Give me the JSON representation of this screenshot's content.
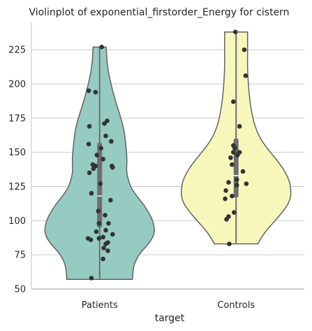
{
  "chart_data": {
    "type": "violin",
    "title": "Violinplot of exponential_firstorder_Energy for cistern",
    "xlabel": "target",
    "ylabel": "",
    "ylim": [
      50,
      245
    ],
    "yticks": [
      50,
      75,
      100,
      125,
      150,
      175,
      200,
      225
    ],
    "grid": "y",
    "categories": [
      "Patients",
      "Controls"
    ],
    "groups": [
      {
        "category": "Patients",
        "fill": "#95cbc1",
        "min": 57,
        "max": 227,
        "q1": 95,
        "median": 118,
        "q3": 157,
        "density": [
          [
            57,
            0.6
          ],
          [
            62,
            0.61
          ],
          [
            67,
            0.63
          ],
          [
            72,
            0.68
          ],
          [
            77,
            0.76
          ],
          [
            82,
            0.87
          ],
          [
            87,
            0.96
          ],
          [
            92,
            1.0
          ],
          [
            97,
            0.99
          ],
          [
            102,
            0.95
          ],
          [
            107,
            0.88
          ],
          [
            112,
            0.8
          ],
          [
            117,
            0.7
          ],
          [
            125,
            0.57
          ],
          [
            135,
            0.5
          ],
          [
            145,
            0.5
          ],
          [
            155,
            0.48
          ],
          [
            165,
            0.45
          ],
          [
            175,
            0.39
          ],
          [
            185,
            0.31
          ],
          [
            195,
            0.24
          ],
          [
            205,
            0.18
          ],
          [
            215,
            0.14
          ],
          [
            220,
            0.13
          ],
          [
            227,
            0.12
          ]
        ],
        "points": [
          [
            0.03,
            227
          ],
          [
            -0.16,
            195
          ],
          [
            -0.06,
            194
          ],
          [
            0.11,
            173
          ],
          [
            0.07,
            171
          ],
          [
            -0.15,
            169
          ],
          [
            0.09,
            162
          ],
          [
            0.17,
            158
          ],
          [
            -0.16,
            156
          ],
          [
            0.02,
            153
          ],
          [
            -0.04,
            148
          ],
          [
            0.05,
            145
          ],
          [
            -0.1,
            141
          ],
          [
            -0.06,
            140
          ],
          [
            0.18,
            140
          ],
          [
            0.19,
            139
          ],
          [
            -0.09,
            138
          ],
          [
            -0.15,
            135
          ],
          [
            0.01,
            127
          ],
          [
            -0.12,
            120
          ],
          [
            0.16,
            115
          ],
          [
            -0.02,
            107
          ],
          [
            0.08,
            104
          ],
          [
            0.13,
            98
          ],
          [
            -0.01,
            98
          ],
          [
            0.09,
            93
          ],
          [
            -0.05,
            92
          ],
          [
            0.19,
            90
          ],
          [
            0.05,
            88
          ],
          [
            -0.17,
            87
          ],
          [
            -0.01,
            87
          ],
          [
            -0.13,
            86
          ],
          [
            0.12,
            84
          ],
          [
            0.09,
            83
          ],
          [
            0.06,
            80
          ],
          [
            0.12,
            78
          ],
          [
            0.05,
            72
          ],
          [
            -0.12,
            58
          ]
        ]
      },
      {
        "category": "Controls",
        "fill": "#f7f7bc",
        "min": 83,
        "max": 238,
        "q1": 117,
        "median": 133,
        "q3": 160,
        "density": [
          [
            83,
            0.4
          ],
          [
            88,
            0.47
          ],
          [
            93,
            0.56
          ],
          [
            98,
            0.67
          ],
          [
            103,
            0.78
          ],
          [
            108,
            0.88
          ],
          [
            113,
            0.96
          ],
          [
            118,
            1.0
          ],
          [
            123,
            1.0
          ],
          [
            128,
            0.98
          ],
          [
            133,
            0.93
          ],
          [
            138,
            0.86
          ],
          [
            143,
            0.77
          ],
          [
            148,
            0.67
          ],
          [
            153,
            0.57
          ],
          [
            158,
            0.48
          ],
          [
            163,
            0.41
          ],
          [
            168,
            0.36
          ],
          [
            173,
            0.32
          ],
          [
            183,
            0.27
          ],
          [
            193,
            0.24
          ],
          [
            203,
            0.22
          ],
          [
            213,
            0.21
          ],
          [
            223,
            0.21
          ],
          [
            233,
            0.21
          ],
          [
            238,
            0.21
          ]
        ],
        "points": [
          [
            -0.01,
            238
          ],
          [
            0.12,
            225
          ],
          [
            0.14,
            206
          ],
          [
            -0.04,
            187
          ],
          [
            0.05,
            169
          ],
          [
            -0.04,
            155
          ],
          [
            -0.02,
            153
          ],
          [
            -0.04,
            150
          ],
          [
            0.05,
            150
          ],
          [
            0.02,
            148
          ],
          [
            -0.08,
            146
          ],
          [
            -0.06,
            141
          ],
          [
            0.1,
            136
          ],
          [
            0.01,
            130
          ],
          [
            -0.11,
            128
          ],
          [
            0.15,
            127
          ],
          [
            0.01,
            126
          ],
          [
            -0.15,
            122
          ],
          [
            -0.06,
            118
          ],
          [
            -0.16,
            116
          ],
          [
            -0.11,
            103
          ],
          [
            -0.03,
            106
          ],
          [
            -0.14,
            101
          ],
          [
            -0.1,
            83
          ]
        ]
      }
    ],
    "colors": {
      "outline": "#636363",
      "box": "#6e6e6e",
      "median_dot": "#ffffff",
      "points": "#333333",
      "grid": "#cccccc",
      "frame": "#cccccc"
    }
  }
}
